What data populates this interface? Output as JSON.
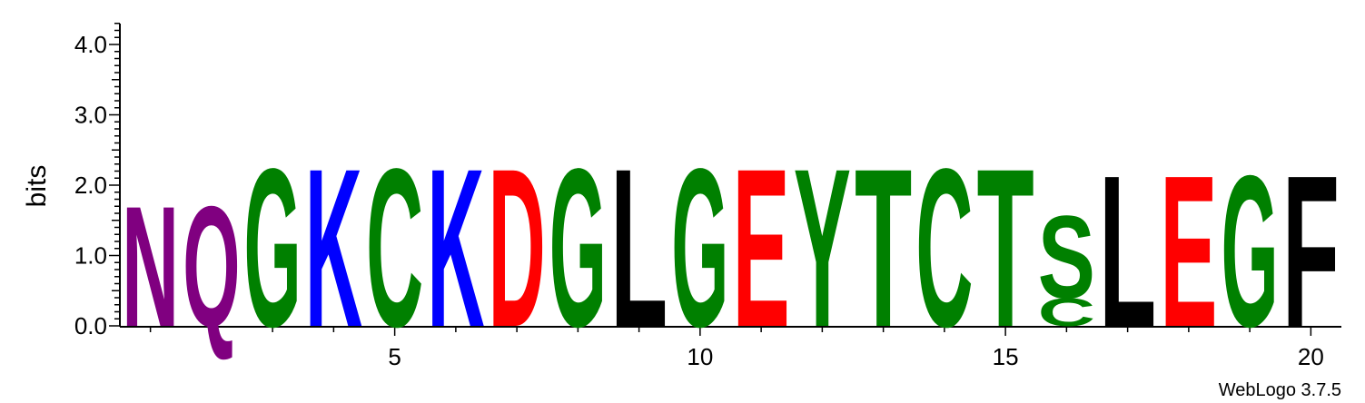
{
  "chart_data": {
    "type": "sequence-logo",
    "ylabel": "bits",
    "ylim": [
      0,
      4.3
    ],
    "y_ticks": [
      {
        "value": 0,
        "label": "0.0"
      },
      {
        "value": 1,
        "label": "1.0"
      },
      {
        "value": 2,
        "label": "2.0"
      },
      {
        "value": 3,
        "label": "3.0"
      },
      {
        "value": 4,
        "label": "4.0"
      }
    ],
    "x_range": [
      0.5,
      20.5
    ],
    "x_ticks": [
      {
        "value": 5,
        "label": "5"
      },
      {
        "value": 10,
        "label": "10"
      },
      {
        "value": 15,
        "label": "15"
      },
      {
        "value": 20,
        "label": "20"
      }
    ],
    "positions": [
      {
        "pos": 1,
        "letters": [
          {
            "letter": "N",
            "bits": 1.75,
            "color": "#800080"
          }
        ]
      },
      {
        "pos": 2,
        "letters": [
          {
            "letter": "Q",
            "bits": 1.75,
            "color": "#800080"
          }
        ]
      },
      {
        "pos": 3,
        "letters": [
          {
            "letter": "G",
            "bits": 2.3,
            "color": "#008000"
          }
        ]
      },
      {
        "pos": 4,
        "letters": [
          {
            "letter": "K",
            "bits": 2.3,
            "color": "#0000ff"
          }
        ]
      },
      {
        "pos": 5,
        "letters": [
          {
            "letter": "C",
            "bits": 2.3,
            "color": "#008000"
          }
        ]
      },
      {
        "pos": 6,
        "letters": [
          {
            "letter": "K",
            "bits": 2.3,
            "color": "#0000ff"
          }
        ]
      },
      {
        "pos": 7,
        "letters": [
          {
            "letter": "D",
            "bits": 2.3,
            "color": "#ff0000"
          }
        ]
      },
      {
        "pos": 8,
        "letters": [
          {
            "letter": "G",
            "bits": 2.3,
            "color": "#008000"
          }
        ]
      },
      {
        "pos": 9,
        "letters": [
          {
            "letter": "L",
            "bits": 2.3,
            "color": "#000000"
          }
        ]
      },
      {
        "pos": 10,
        "letters": [
          {
            "letter": "G",
            "bits": 2.3,
            "color": "#008000"
          }
        ]
      },
      {
        "pos": 11,
        "letters": [
          {
            "letter": "E",
            "bits": 2.3,
            "color": "#ff0000"
          }
        ]
      },
      {
        "pos": 12,
        "letters": [
          {
            "letter": "Y",
            "bits": 2.3,
            "color": "#008000"
          }
        ]
      },
      {
        "pos": 13,
        "letters": [
          {
            "letter": "T",
            "bits": 2.3,
            "color": "#008000"
          }
        ]
      },
      {
        "pos": 14,
        "letters": [
          {
            "letter": "C",
            "bits": 2.3,
            "color": "#008000"
          }
        ]
      },
      {
        "pos": 15,
        "letters": [
          {
            "letter": "T",
            "bits": 2.3,
            "color": "#008000"
          }
        ]
      },
      {
        "pos": 16,
        "letters": [
          {
            "letter": "C",
            "bits": 0.4,
            "color": "#008000"
          },
          {
            "letter": "S",
            "bits": 1.2,
            "color": "#008000"
          }
        ]
      },
      {
        "pos": 17,
        "letters": [
          {
            "letter": "L",
            "bits": 2.2,
            "color": "#000000"
          }
        ]
      },
      {
        "pos": 18,
        "letters": [
          {
            "letter": "E",
            "bits": 2.2,
            "color": "#ff0000"
          }
        ]
      },
      {
        "pos": 19,
        "letters": [
          {
            "letter": "G",
            "bits": 2.2,
            "color": "#008000"
          }
        ]
      },
      {
        "pos": 20,
        "letters": [
          {
            "letter": "F",
            "bits": 2.2,
            "color": "#000000"
          }
        ]
      }
    ],
    "grid": false
  },
  "footer": {
    "credit": "WebLogo 3.7.5"
  }
}
